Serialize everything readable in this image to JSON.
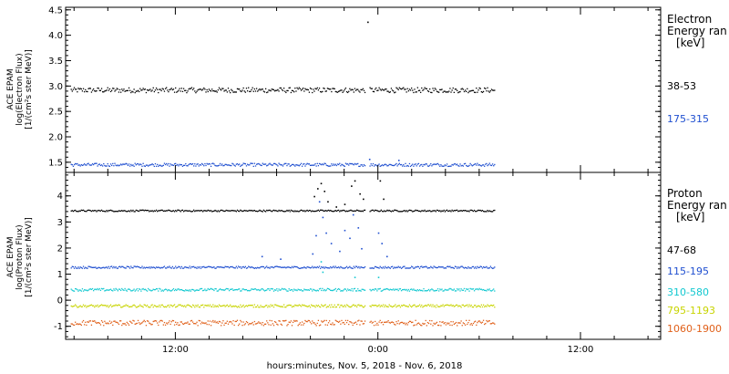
{
  "chart_data": [
    {
      "type": "scatter",
      "panel": "electron",
      "ylabel_lines": [
        "ACE EPAM",
        "log(Electron Flux)",
        "[1/(cm²s ster MeV)]"
      ],
      "ylim": [
        1.3,
        4.55
      ],
      "yticks": [
        1.5,
        2.0,
        2.5,
        3.0,
        3.5,
        4.0,
        4.5
      ],
      "ytick_labels": [
        "1.5",
        "2.0",
        "2.5",
        "3.0",
        "3.5",
        "4.0",
        "4.5"
      ],
      "legend_title_lines": [
        "Electron",
        "Energy ran",
        "[keV]"
      ],
      "gap_hours": [
        23.2,
        23.45
      ],
      "series": [
        {
          "name": "38-53",
          "color": "#000000",
          "base": 2.93,
          "noise": 0.05,
          "spikes": [
            {
              "x": 23.37,
              "y": 4.27
            }
          ]
        },
        {
          "name": "175-315",
          "color": "#1f4fd0",
          "base": 1.46,
          "noise": 0.03,
          "spikes": [
            {
              "x": 23.47,
              "y": 1.57
            },
            {
              "x": 25.2,
              "y": 1.55
            }
          ]
        }
      ]
    },
    {
      "type": "scatter",
      "panel": "proton",
      "ylabel_lines": [
        "ACE EPAM",
        "log(Proton Flux)",
        "[1/(cm²s ster MeV)]"
      ],
      "ylim": [
        -1.5,
        4.9
      ],
      "yticks": [
        -1,
        0,
        1,
        2,
        3,
        4
      ],
      "ytick_labels": [
        "-1",
        "0",
        "1",
        "2",
        "3",
        "4"
      ],
      "legend_title_lines": [
        "Proton",
        "Energy ran",
        "[keV]"
      ],
      "gap_hours": [
        23.2,
        23.45
      ],
      "series": [
        {
          "name": "47-68",
          "color": "#000000",
          "base": 3.45,
          "noise": 0.03,
          "spikes": [
            {
              "x": 20.2,
              "y": 4.0
            },
            {
              "x": 20.4,
              "y": 4.3
            },
            {
              "x": 20.6,
              "y": 4.5
            },
            {
              "x": 20.8,
              "y": 4.2
            },
            {
              "x": 21.0,
              "y": 3.8
            },
            {
              "x": 21.5,
              "y": 3.6
            },
            {
              "x": 22.0,
              "y": 3.7
            },
            {
              "x": 22.4,
              "y": 4.4
            },
            {
              "x": 22.6,
              "y": 4.6
            },
            {
              "x": 22.9,
              "y": 4.1
            },
            {
              "x": 23.1,
              "y": 3.9
            },
            {
              "x": 24.1,
              "y": 4.6
            },
            {
              "x": 24.3,
              "y": 3.9
            }
          ]
        },
        {
          "name": "115-195",
          "color": "#1f4fd0",
          "base": 1.28,
          "noise": 0.04,
          "spikes": [
            {
              "x": 17.1,
              "y": 1.7
            },
            {
              "x": 18.2,
              "y": 1.6
            },
            {
              "x": 20.1,
              "y": 1.8
            },
            {
              "x": 20.3,
              "y": 2.5
            },
            {
              "x": 20.5,
              "y": 3.8
            },
            {
              "x": 20.7,
              "y": 3.2
            },
            {
              "x": 20.9,
              "y": 2.6
            },
            {
              "x": 21.2,
              "y": 2.2
            },
            {
              "x": 21.7,
              "y": 1.9
            },
            {
              "x": 22.0,
              "y": 2.7
            },
            {
              "x": 22.3,
              "y": 2.4
            },
            {
              "x": 22.5,
              "y": 3.3
            },
            {
              "x": 22.8,
              "y": 2.8
            },
            {
              "x": 23.0,
              "y": 2.0
            },
            {
              "x": 24.0,
              "y": 2.6
            },
            {
              "x": 24.2,
              "y": 2.2
            },
            {
              "x": 24.5,
              "y": 1.7
            }
          ]
        },
        {
          "name": "310-580",
          "color": "#12c8d0",
          "base": 0.42,
          "noise": 0.05,
          "spikes": [
            {
              "x": 20.6,
              "y": 1.5
            },
            {
              "x": 20.7,
              "y": 1.1
            },
            {
              "x": 22.6,
              "y": 0.9
            },
            {
              "x": 24.0,
              "y": 0.9
            }
          ]
        },
        {
          "name": "795-1193",
          "color": "#c8d400",
          "base": -0.2,
          "noise": 0.05,
          "spikes": []
        },
        {
          "name": "1060-1900",
          "color": "#e0601a",
          "base": -0.85,
          "noise": 0.1,
          "spikes": []
        }
      ]
    }
  ],
  "x_axis": {
    "label": "hours:minutes, Nov.  5, 2018 - Nov.  6, 2018",
    "range_hours": [
      5.5,
      40.75
    ],
    "data_range_hours": [
      5.8,
      30.9
    ],
    "ticks_labeled": [
      {
        "hours": 12,
        "label": "12:00"
      },
      {
        "hours": 24,
        "label": "0:00"
      },
      {
        "hours": 36,
        "label": "12:00"
      }
    ],
    "minor_tick_step_hours": 2
  }
}
